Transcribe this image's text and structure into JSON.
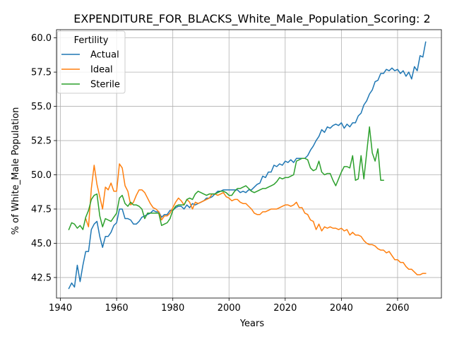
{
  "chart_data": {
    "type": "line",
    "title": "EXPENDITURE_FOR_BLACKS_White_Male_Population_Scoring: 2",
    "xlabel": "Years",
    "ylabel": "% of White_Male Population",
    "xlim": [
      1938.6,
      2075.6
    ],
    "ylim": [
      41.0,
      60.6
    ],
    "xticks": [
      1940,
      1960,
      1980,
      2000,
      2020,
      2040,
      2060
    ],
    "yticks": [
      42.5,
      45.0,
      47.5,
      50.0,
      52.5,
      55.0,
      57.5,
      60.0
    ],
    "ytick_labels": [
      "42.5",
      "45.0",
      "47.5",
      "50.0",
      "52.5",
      "55.0",
      "57.5",
      "60.0"
    ],
    "grid": true,
    "legend": {
      "title": "Fertility",
      "placement": "upper-left"
    },
    "series": [
      {
        "name": "Actual",
        "color": "#1f77b4",
        "x": [
          1943,
          1944,
          1945,
          1946,
          1947,
          1948,
          1949,
          1950,
          1951,
          1952,
          1953,
          1954,
          1955,
          1956,
          1957,
          1958,
          1959,
          1960,
          1961,
          1962,
          1963,
          1964,
          1965,
          1966,
          1967,
          1968,
          1969,
          1970,
          1971,
          1972,
          1973,
          1974,
          1975,
          1976,
          1977,
          1978,
          1979,
          1980,
          1981,
          1982,
          1983,
          1984,
          1985,
          1986,
          1987,
          1988,
          1989,
          1990,
          1991,
          1992,
          1993,
          1994,
          1995,
          1996,
          1997,
          1998,
          1999,
          2000,
          2001,
          2002,
          2003,
          2004,
          2005,
          2006,
          2007,
          2008,
          2009,
          2010,
          2011,
          2012,
          2013,
          2014,
          2015,
          2016,
          2017,
          2018,
          2019,
          2020,
          2021,
          2022,
          2023,
          2024,
          2025,
          2026,
          2027,
          2028,
          2029,
          2030,
          2031,
          2032,
          2033,
          2034,
          2035,
          2036,
          2037,
          2038,
          2039,
          2040,
          2041,
          2042,
          2043,
          2044,
          2045,
          2046,
          2047,
          2048,
          2049,
          2050,
          2051,
          2052,
          2053,
          2054,
          2055,
          2056,
          2057,
          2058,
          2059,
          2060,
          2061,
          2062,
          2063,
          2064,
          2065,
          2066,
          2067,
          2068,
          2069,
          2070
        ],
        "y": [
          41.7,
          42.1,
          41.8,
          43.4,
          42.2,
          43.4,
          44.4,
          44.4,
          46.0,
          46.4,
          46.6,
          45.5,
          44.7,
          45.5,
          45.5,
          45.8,
          46.3,
          46.5,
          47.5,
          47.5,
          46.8,
          46.8,
          46.7,
          46.4,
          46.4,
          46.6,
          46.9,
          47.0,
          47.1,
          47.2,
          47.4,
          47.3,
          47.3,
          46.9,
          47.1,
          47.1,
          47.4,
          47.4,
          47.6,
          47.7,
          47.7,
          47.5,
          47.8,
          47.6,
          47.9,
          47.8,
          47.9,
          48.0,
          48.1,
          48.3,
          48.3,
          48.4,
          48.6,
          48.8,
          48.8,
          48.9,
          48.9,
          48.9,
          48.9,
          48.9,
          48.9,
          48.7,
          48.8,
          48.7,
          48.9,
          48.9,
          49.1,
          49.3,
          49.4,
          49.9,
          49.8,
          50.2,
          50.2,
          50.7,
          50.6,
          50.8,
          50.7,
          51.0,
          50.9,
          51.1,
          50.9,
          51.2,
          51.2,
          51.2,
          51.2,
          51.4,
          51.8,
          52.1,
          52.5,
          52.8,
          53.3,
          53.1,
          53.5,
          53.4,
          53.6,
          53.7,
          53.6,
          53.8,
          53.4,
          53.7,
          53.5,
          53.8,
          53.8,
          54.3,
          54.5,
          55.1,
          55.4,
          55.9,
          56.2,
          56.8,
          56.9,
          57.4,
          57.4,
          57.7,
          57.6,
          57.8,
          57.6,
          57.7,
          57.4,
          57.6,
          57.2,
          57.5,
          57.0,
          57.9,
          57.6,
          58.7,
          58.6,
          59.7
        ]
      },
      {
        "name": "Ideal",
        "color": "#ff7f0e",
        "x": [
          1949,
          1950,
          1951,
          1952,
          1953,
          1954,
          1955,
          1956,
          1957,
          1958,
          1959,
          1960,
          1961,
          1962,
          1963,
          1964,
          1965,
          1966,
          1967,
          1968,
          1969,
          1970,
          1971,
          1972,
          1973,
          1974,
          1975,
          1976,
          1977,
          1978,
          1979,
          1980,
          1981,
          1982,
          1983,
          1984,
          1985,
          1986,
          1987,
          1988,
          1989,
          1990,
          1991,
          1992,
          1993,
          1994,
          1995,
          1996,
          1997,
          1998,
          1999,
          2000,
          2001,
          2002,
          2003,
          2004,
          2005,
          2006,
          2007,
          2008,
          2009,
          2010,
          2011,
          2012,
          2013,
          2014,
          2015,
          2016,
          2017,
          2018,
          2019,
          2020,
          2021,
          2022,
          2023,
          2024,
          2025,
          2026,
          2027,
          2028,
          2029,
          2030,
          2031,
          2032,
          2033,
          2034,
          2035,
          2036,
          2037,
          2038,
          2039,
          2040,
          2041,
          2042,
          2043,
          2044,
          2045,
          2046,
          2047,
          2048,
          2049,
          2050,
          2051,
          2052,
          2053,
          2054,
          2055,
          2056,
          2057,
          2058,
          2059,
          2060,
          2061,
          2062,
          2063,
          2064,
          2065,
          2066,
          2067,
          2068,
          2069,
          2070
        ],
        "y": [
          46.8,
          46.2,
          49.0,
          50.7,
          49.3,
          48.4,
          47.5,
          49.1,
          48.9,
          49.4,
          48.8,
          48.8,
          50.8,
          50.5,
          49.2,
          48.8,
          47.8,
          48.0,
          48.5,
          48.9,
          48.9,
          48.7,
          48.3,
          47.9,
          47.6,
          47.5,
          47.3,
          46.7,
          47.0,
          47.0,
          47.2,
          47.6,
          48.0,
          48.3,
          48.1,
          47.8,
          48.2,
          48.0,
          47.5,
          48.0,
          47.9,
          48.0,
          48.1,
          48.2,
          48.3,
          48.6,
          48.6,
          48.5,
          48.6,
          48.7,
          48.4,
          48.3,
          48.1,
          48.2,
          48.2,
          48.0,
          47.9,
          47.9,
          47.7,
          47.5,
          47.2,
          47.1,
          47.1,
          47.3,
          47.3,
          47.4,
          47.5,
          47.5,
          47.5,
          47.6,
          47.7,
          47.8,
          47.8,
          47.7,
          47.8,
          48.0,
          47.6,
          47.6,
          47.2,
          47.1,
          46.7,
          46.6,
          46.0,
          46.4,
          45.9,
          46.2,
          46.1,
          46.2,
          46.1,
          46.1,
          46.0,
          46.1,
          45.9,
          46.0,
          45.6,
          45.8,
          45.6,
          45.6,
          45.5,
          45.2,
          45.0,
          44.9,
          44.9,
          44.8,
          44.6,
          44.5,
          44.5,
          44.3,
          44.4,
          44.1,
          43.8,
          43.8,
          43.6,
          43.6,
          43.3,
          43.1,
          43.1,
          42.9,
          42.7,
          42.7,
          42.8,
          42.8
        ]
      },
      {
        "name": "Sterile",
        "color": "#2ca02c",
        "x": [
          1943,
          1944,
          1945,
          1946,
          1947,
          1948,
          1949,
          1950,
          1951,
          1952,
          1953,
          1954,
          1955,
          1956,
          1957,
          1958,
          1959,
          1960,
          1961,
          1962,
          1963,
          1964,
          1965,
          1966,
          1967,
          1968,
          1969,
          1970,
          1971,
          1972,
          1973,
          1974,
          1975,
          1976,
          1977,
          1978,
          1979,
          1980,
          1981,
          1982,
          1983,
          1984,
          1985,
          1986,
          1987,
          1988,
          1989,
          1990,
          1991,
          1992,
          1993,
          1994,
          1995,
          1996,
          1997,
          1998,
          1999,
          2000,
          2001,
          2002,
          2003,
          2004,
          2005,
          2006,
          2007,
          2008,
          2009,
          2010,
          2011,
          2012,
          2013,
          2014,
          2015,
          2016,
          2017,
          2018,
          2019,
          2020,
          2021,
          2022,
          2023,
          2024,
          2025,
          2026,
          2027,
          2028,
          2029,
          2030,
          2031,
          2032,
          2033,
          2034,
          2035,
          2036,
          2037,
          2038,
          2039,
          2040,
          2041,
          2042,
          2043,
          2044,
          2045,
          2046,
          2047,
          2048,
          2049,
          2050,
          2051,
          2052,
          2053,
          2054,
          2055
        ],
        "y": [
          46.0,
          46.5,
          46.4,
          46.1,
          46.3,
          46.0,
          46.9,
          47.4,
          48.2,
          48.5,
          48.6,
          47.0,
          46.2,
          46.8,
          46.7,
          46.6,
          46.9,
          47.2,
          48.3,
          48.5,
          47.9,
          47.7,
          48.0,
          47.8,
          47.8,
          47.7,
          47.5,
          46.8,
          47.2,
          47.2,
          47.2,
          47.2,
          47.2,
          46.3,
          46.4,
          46.5,
          46.8,
          47.4,
          47.7,
          47.8,
          47.8,
          47.8,
          48.2,
          48.3,
          48.2,
          48.6,
          48.8,
          48.7,
          48.6,
          48.5,
          48.6,
          48.6,
          48.6,
          48.7,
          48.8,
          48.8,
          48.7,
          48.5,
          48.5,
          48.8,
          49.0,
          49.0,
          49.1,
          49.2,
          49.0,
          48.8,
          48.7,
          48.8,
          48.9,
          49.0,
          49.0,
          49.1,
          49.2,
          49.3,
          49.5,
          49.8,
          49.7,
          49.8,
          49.8,
          49.9,
          50.0,
          51.0,
          51.1,
          51.2,
          51.2,
          51.1,
          50.5,
          50.3,
          50.4,
          51.0,
          50.2,
          50.0,
          50.1,
          50.1,
          49.6,
          49.2,
          49.7,
          50.2,
          50.6,
          50.6,
          50.5,
          51.4,
          49.6,
          49.7,
          51.4,
          49.7,
          51.6,
          53.5,
          51.6,
          51.0,
          51.9,
          49.6,
          49.6
        ]
      }
    ]
  }
}
